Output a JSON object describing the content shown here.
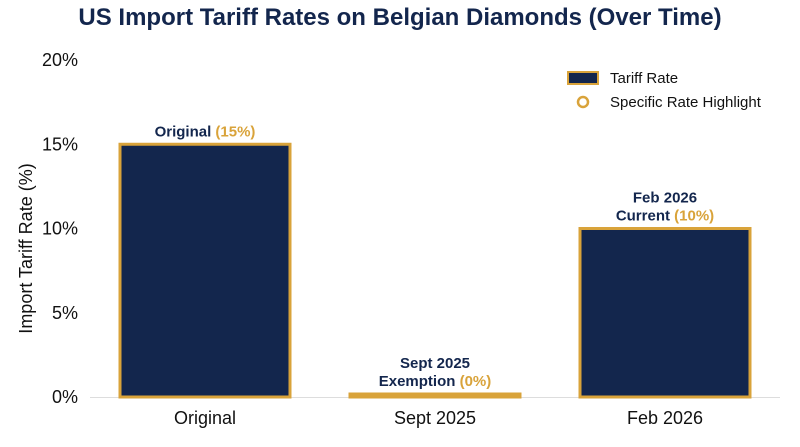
{
  "chart_data": {
    "type": "bar",
    "title": "US Import Tariff Rates on Belgian Diamonds (Over Time)",
    "ylabel": "Import Tariff Rate (%)",
    "xlabel": "",
    "categories": [
      "Original",
      "Sept 2025",
      "Feb 2026"
    ],
    "series": [
      {
        "name": "Tariff Rate",
        "values": [
          15,
          0,
          10
        ]
      }
    ],
    "ylim": [
      0,
      20
    ],
    "yticks": [
      "0%",
      "5%",
      "10%",
      "15%",
      "20%"
    ],
    "ytick_values": [
      0,
      5,
      10,
      15,
      20
    ],
    "data_labels": [
      {
        "lines": [],
        "main": "Original",
        "highlight": "(15%)"
      },
      {
        "lines": [
          "Sept 2025"
        ],
        "main": "Exemption",
        "highlight": "(0%)"
      },
      {
        "lines": [
          "Feb 2026"
        ],
        "main": "Current",
        "highlight": "(10%)"
      }
    ],
    "legend": {
      "position": "top-right",
      "entries": [
        {
          "label": "Tariff Rate",
          "marker": "bar"
        },
        {
          "label": "Specific Rate Highlight",
          "marker": "circle"
        }
      ]
    },
    "colors": {
      "bar_fill": "#13264d",
      "bar_edge": "#d9a33a",
      "highlight": "#d9a33a",
      "title": "#13264d"
    },
    "grid": false
  }
}
